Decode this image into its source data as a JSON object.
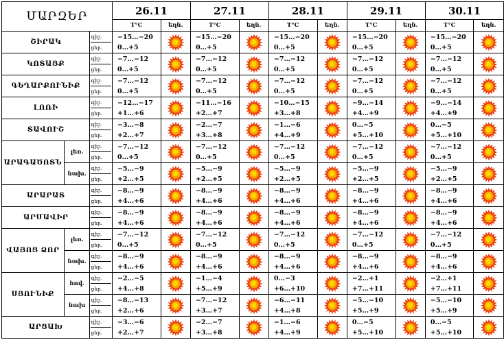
{
  "header": {
    "title": "ՄԱՐԶԵՐ",
    "dates": [
      "26.11",
      "27.11",
      "28.11",
      "29.11",
      "30.11"
    ],
    "temp_label": "T°C",
    "weather_label": "եղն."
  },
  "labels": {
    "night": "գիշ.",
    "day": "ցեր."
  },
  "icon": "sun-icon",
  "colors": {
    "sun_core": "#f7a600",
    "sun_rays": "#e83b10"
  },
  "rows": [
    {
      "region": "ՇԻՐԱԿ",
      "sub": "",
      "d1": "ցեր.",
      "temps": [
        [
          "−15…−20",
          "0…+5"
        ],
        [
          "−15…−20",
          "0…+5"
        ],
        [
          "−15…−20",
          "0…+5"
        ],
        [
          "−15…−20",
          "0…+5"
        ],
        [
          "−15…−20",
          "0…+5"
        ]
      ]
    },
    {
      "region": "ԿՈՏԱՅՔ",
      "sub": "",
      "d1": "ցեր.",
      "temps": [
        [
          "−7…−12",
          "0…+5"
        ],
        [
          "−7…−12",
          "0…+5"
        ],
        [
          "−7…−12",
          "0…+5"
        ],
        [
          "−7…−12",
          "0…+5"
        ],
        [
          "−7…−12",
          "0…+5"
        ]
      ]
    },
    {
      "region": "ԳԵՂԱՐՔՈՒՆԻՔ",
      "sub": "",
      "d1": "ցեր.",
      "temps": [
        [
          "−7…−12",
          "0…+5"
        ],
        [
          "−7…−12",
          "0…+5"
        ],
        [
          "−7…−12",
          "0…+5"
        ],
        [
          "−7…−12",
          "0…+5"
        ],
        [
          "−7…−12",
          "0…+5"
        ]
      ]
    },
    {
      "region": "ԼՈՌԻ",
      "sub": "",
      "d1": "ցեր.",
      "temps": [
        [
          "−12…−17",
          "+1…+6"
        ],
        [
          "−11…−16",
          "+2…+7"
        ],
        [
          "−10…−15",
          "+3…+8"
        ],
        [
          "−9…−14",
          "+4…+9"
        ],
        [
          "−9…−14",
          "+4…+9"
        ]
      ]
    },
    {
      "region": "ՏԱՎՈՒՇ",
      "sub": "",
      "d1": "ցեր.",
      "temps": [
        [
          "−3…−8",
          "+2…+7"
        ],
        [
          "−2…−7",
          "+3…+8"
        ],
        [
          "−1…−6",
          "+4…+9"
        ],
        [
          "0…−5",
          "+5…+10"
        ],
        [
          "0…−5",
          "+5…+10"
        ]
      ]
    },
    {
      "region": "ԱՐԱԳԱԾՈՏՆ",
      "sub": "լեռ.",
      "d1": "ցեր.",
      "temps": [
        [
          "−7…−12",
          "0…+5"
        ],
        [
          "−7…−12",
          "0…+5"
        ],
        [
          "−7…−12",
          "0…+5"
        ],
        [
          "−7…−12",
          "0…+5"
        ],
        [
          "−7…−12",
          "0…+5"
        ]
      ]
    },
    {
      "region": "",
      "sub": "նախ.",
      "d1": "ցեր.",
      "temps": [
        [
          "−5…−9",
          "+2…+5"
        ],
        [
          "−5…−9",
          "+2…+5"
        ],
        [
          "−5…−9",
          "+2…+5"
        ],
        [
          "−5…−9",
          "+2…+5"
        ],
        [
          "−5…−9",
          "+2…+5"
        ]
      ]
    },
    {
      "region": "ԱՐԱՐԱՏ",
      "sub": "",
      "d1": "ցեր.",
      "temps": [
        [
          "−8…−9",
          "+4…+6"
        ],
        [
          "−8…−9",
          "+4…+6"
        ],
        [
          "−8…−9",
          "+4…+6"
        ],
        [
          "−8…−9",
          "+4…+6"
        ],
        [
          "−8…−9",
          "+4…+6"
        ]
      ]
    },
    {
      "region": "ԱՐՄԱՎԻՐ",
      "sub": "",
      "d1": "ցեր.",
      "temps": [
        [
          "−8…−9",
          "+4…+6"
        ],
        [
          "−8…−9",
          "+4…+6"
        ],
        [
          "−8…−9",
          "+4…+6"
        ],
        [
          "−8…−9",
          "+4…+6"
        ],
        [
          "−8…−9",
          "+4…+6"
        ]
      ]
    },
    {
      "region": "ՎԱՅՈՑ ՁՈՐ",
      "sub": "լեռ.",
      "d1": "ցեր.",
      "temps": [
        [
          "−7…−12",
          "0…+5"
        ],
        [
          "−7…−12",
          "0…+5"
        ],
        [
          "−7…−12",
          "0…+5"
        ],
        [
          "−7…−12",
          "0…+5"
        ],
        [
          "−7…−12",
          "0…+5"
        ]
      ]
    },
    {
      "region": "",
      "sub": "նախ.",
      "d1": "ցեր.",
      "temps": [
        [
          "−8…−9",
          "+4…+6"
        ],
        [
          "−8…−9",
          "+4…+6"
        ],
        [
          "−8…−9",
          "+4…+6"
        ],
        [
          "−8…−9",
          "+4…+6"
        ],
        [
          "−8…−9",
          "+4…+6"
        ]
      ]
    },
    {
      "region": "ՍՅՈՒՆԻՔ",
      "sub": "հով.",
      "d1": "ցեր.",
      "temps": [
        [
          "−2…−5",
          "+4…+8"
        ],
        [
          "−1…−4",
          "+5…+9"
        ],
        [
          "0…−3",
          "+6…+10"
        ],
        [
          "−2…+1",
          "+7…+11"
        ],
        [
          "−2…+1",
          "+7…+11"
        ]
      ]
    },
    {
      "region": "",
      "sub": "նախ",
      "d1": "ցեր.",
      "temps": [
        [
          "−8…−13",
          "+2…+6"
        ],
        [
          "−7…−12",
          "+3…+7"
        ],
        [
          "−6…−11",
          "+4…+8"
        ],
        [
          "−5…−10",
          "+5…+9"
        ],
        [
          "−5…−10",
          "+5…+9"
        ]
      ]
    },
    {
      "region": "ԱՐՑԱԽ",
      "sub": "",
      "d1": "ցեր.",
      "temps": [
        [
          "−3…−6",
          "+2…+7"
        ],
        [
          "−2…−7",
          "+3…+8"
        ],
        [
          "−1…−6",
          "+4…+9"
        ],
        [
          "0…−5",
          "+5…+10"
        ],
        [
          "0…−5",
          "+5…+10"
        ]
      ]
    }
  ]
}
